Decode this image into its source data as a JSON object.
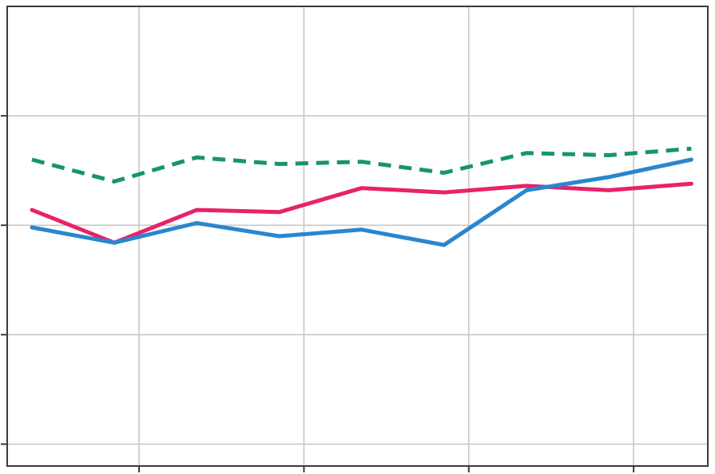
{
  "chart_data": {
    "type": "line",
    "title": "",
    "xlabel": "",
    "ylabel": "",
    "x": [
      1,
      2,
      3,
      4,
      5,
      6,
      7,
      8,
      9
    ],
    "xlim": [
      0.7,
      9.2
    ],
    "ylim": [
      0.3,
      2.4
    ],
    "xticks": [
      2.3,
      4.3,
      6.3,
      8.3
    ],
    "yticks": [
      0.4,
      0.9,
      1.4,
      1.9
    ],
    "grid": true,
    "legend": "none",
    "series": [
      {
        "style": "dashed",
        "color": "#17956b",
        "values": [
          1.7,
          1.6,
          1.71,
          1.68,
          1.69,
          1.64,
          1.73,
          1.72,
          1.75
        ]
      },
      {
        "style": "solid",
        "color": "#e8226a",
        "values": [
          1.47,
          1.32,
          1.47,
          1.46,
          1.57,
          1.55,
          1.58,
          1.56,
          1.59
        ]
      },
      {
        "style": "solid",
        "color": "#2a86cf",
        "values": [
          1.39,
          1.32,
          1.41,
          1.35,
          1.38,
          1.31,
          1.56,
          1.62,
          1.7
        ]
      }
    ],
    "colors": {
      "grid": "#c8c8c8",
      "frame": "#3a3a3a"
    }
  }
}
